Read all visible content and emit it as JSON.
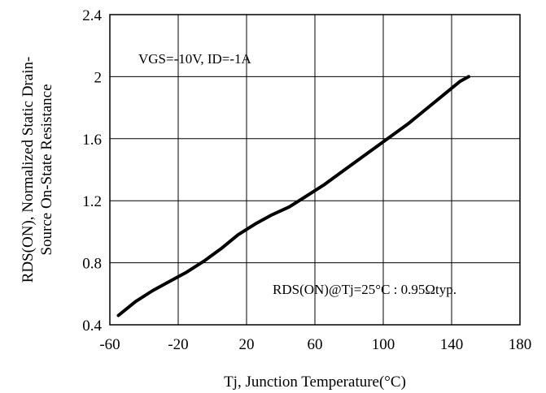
{
  "chart_data": {
    "type": "line",
    "xlabel": "Tj, Junction Temperature(°C)",
    "ylabel_line1": "RDS(ON), Normalized Static Drain-",
    "ylabel_line2": "Source On-State Resistance",
    "xlim": [
      -60,
      180
    ],
    "ylim": [
      0.4,
      2.4
    ],
    "xticks": [
      "-60",
      "-20",
      "20",
      "60",
      "100",
      "140",
      "180"
    ],
    "yticks": [
      "0.4",
      "0.8",
      "1.2",
      "1.6",
      "2",
      "2.4"
    ],
    "grid": true,
    "series": [
      {
        "x": [
          -55,
          -45,
          -35,
          -25,
          -15,
          -5,
          5,
          15,
          25,
          35,
          45,
          55,
          65,
          75,
          85,
          95,
          105,
          115,
          125,
          135,
          145,
          150
        ],
        "y": [
          0.46,
          0.55,
          0.62,
          0.68,
          0.74,
          0.81,
          0.89,
          0.98,
          1.05,
          1.11,
          1.16,
          1.23,
          1.3,
          1.38,
          1.46,
          1.54,
          1.62,
          1.7,
          1.79,
          1.88,
          1.97,
          2.0
        ]
      }
    ],
    "annotations": {
      "condition": "VGS=-10V, ID=-1A",
      "typical": "RDS(ON)@Tj=25°C : 0.95Ωtyp."
    }
  }
}
